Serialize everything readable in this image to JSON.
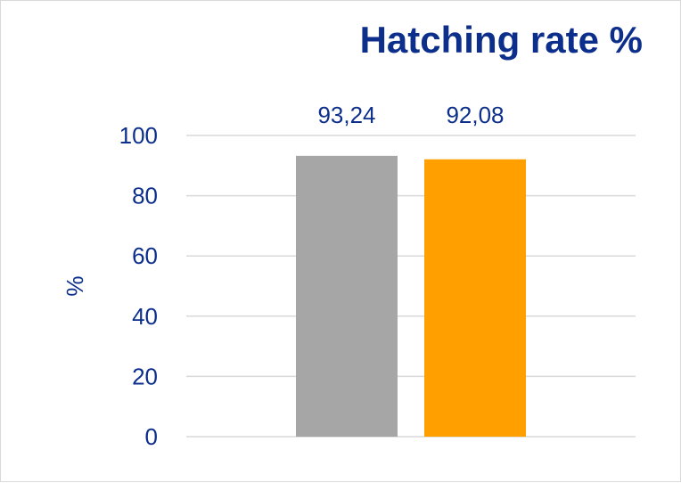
{
  "chart_data": {
    "type": "bar",
    "title": "Hatching rate %",
    "ylabel": "%",
    "xlabel": "",
    "categories": [
      "",
      ""
    ],
    "values": [
      93.24,
      92.08
    ],
    "data_labels": [
      "93,24",
      "92,08"
    ],
    "bar_colors": [
      "#a6a6a6",
      "#ffa000"
    ],
    "ylim": [
      0,
      100
    ],
    "yticks": [
      "0",
      "20",
      "40",
      "60",
      "80",
      "100"
    ],
    "grid": true,
    "legend": "none"
  }
}
